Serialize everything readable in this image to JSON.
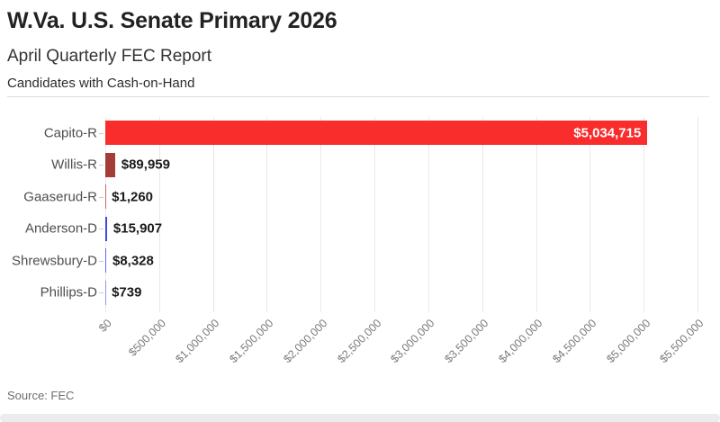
{
  "header": {
    "title": "W.Va. U.S. Senate Primary 2026",
    "subtitle": "April Quarterly FEC Report",
    "caption": "Candidates with Cash-on-Hand"
  },
  "footer": {
    "source": "Source: FEC"
  },
  "colors": {
    "republican_bright_red": "#fa2d2d",
    "republican_dark_red": "#a43c38",
    "democrat_blue": "#3a49e1",
    "democrat_light_blue": "#5e6ae5",
    "gridline": "#e8e8e8",
    "background": "#ffffff"
  },
  "chart_data": {
    "type": "bar",
    "orientation": "horizontal",
    "title": "W.Va. U.S. Senate Primary 2026",
    "subtitle": "April Quarterly FEC Report",
    "note": "Candidates with Cash-on-Hand",
    "source": "Source: FEC",
    "categories": [
      "Capito-R",
      "Willis-R",
      "Gaaserud-R",
      "Anderson-D",
      "Shrewsbury-D",
      "Phillips-D"
    ],
    "values": [
      5034715,
      89959,
      1260,
      15907,
      8328,
      739
    ],
    "value_labels": [
      "$5,034,715",
      "$89,959",
      "$1,260",
      "$15,907",
      "$8,328",
      "$739"
    ],
    "bar_colors": [
      "#fa2d2d",
      "#a43c38",
      "#c96a66",
      "#3a49e1",
      "#5e6ae5",
      "#8d96ee"
    ],
    "value_label_inside": [
      true,
      false,
      false,
      false,
      false,
      false
    ],
    "xlabel": "",
    "ylabel": "",
    "xlim": [
      0,
      5500000
    ],
    "tick_values": [
      0,
      500000,
      1000000,
      1500000,
      2000000,
      2500000,
      3000000,
      3500000,
      4000000,
      4500000,
      5000000,
      5500000
    ],
    "tick_labels": [
      "$0",
      "$500,000",
      "$1,000,000",
      "$1,500,000",
      "$2,000,000",
      "$2,500,000",
      "$3,000,000",
      "$3,500,000",
      "$4,000,000",
      "$4,500,000",
      "$5,000,000",
      "$5,500,000"
    ],
    "grid": true,
    "legend": false
  }
}
